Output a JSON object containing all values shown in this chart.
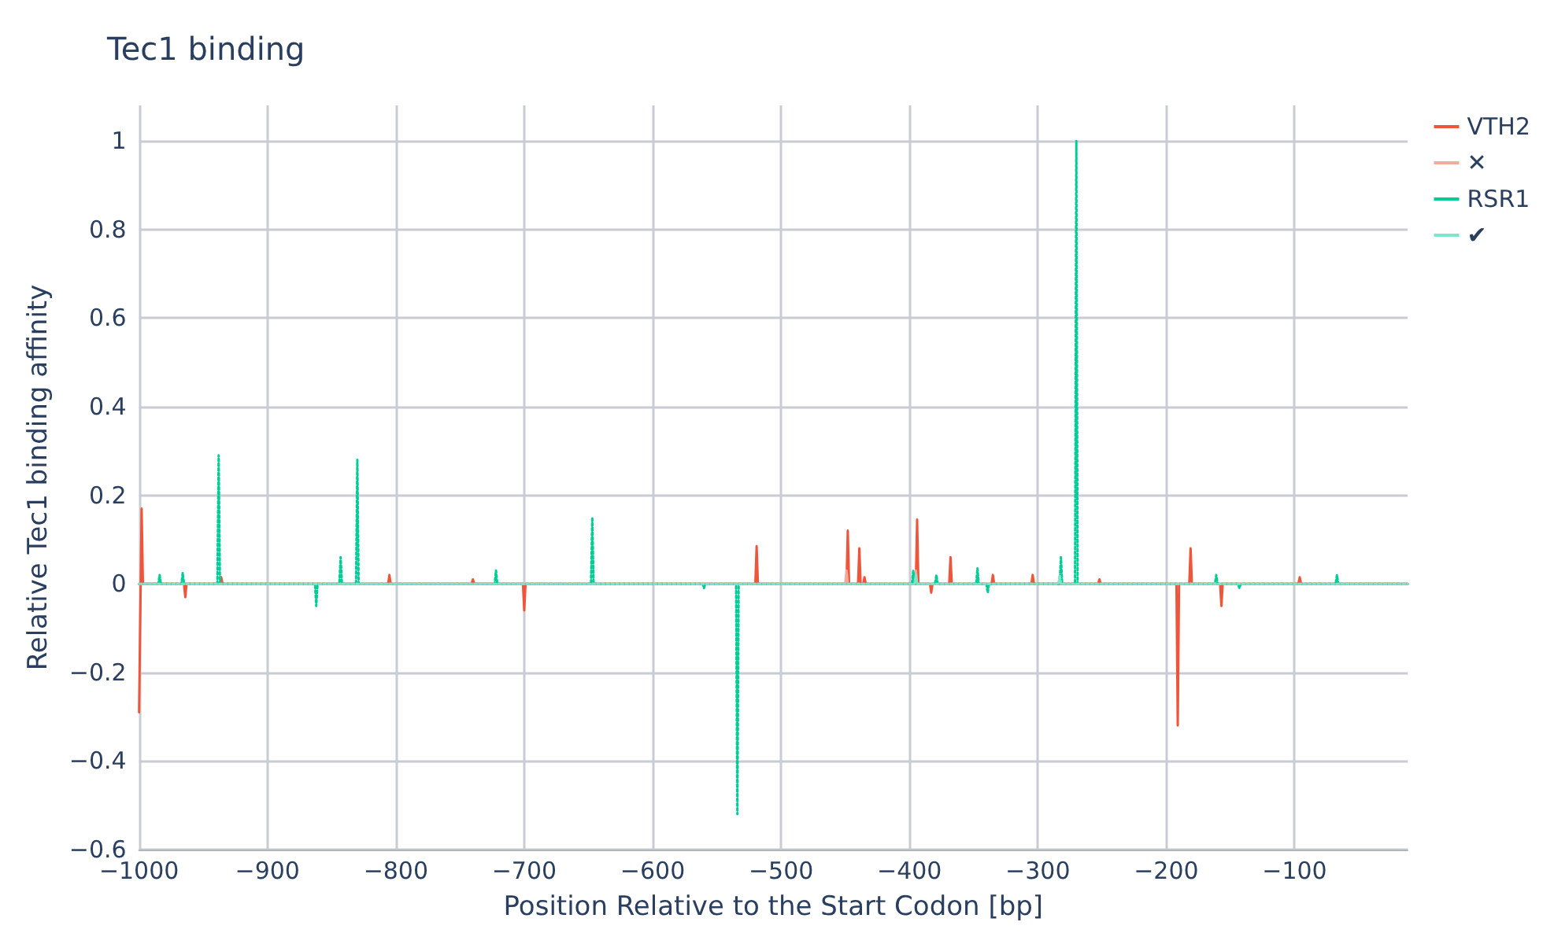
{
  "chart_data": {
    "type": "line",
    "title": "Tec1 binding",
    "xlabel": "Position Relative to the Start Codon [bp]",
    "ylabel": "Relative Tec1 binding affinity",
    "xlim": [
      -1000,
      -12
    ],
    "xticks": [
      -1000,
      -900,
      -800,
      -700,
      -600,
      -500,
      -400,
      -300,
      -200,
      -100
    ],
    "ylim": [
      -0.6,
      1.08
    ],
    "yticks": [
      -0.6,
      -0.4,
      -0.2,
      0,
      0.2,
      0.4,
      0.6,
      0.8,
      1
    ],
    "grid": true,
    "legend": "top right",
    "series": [
      {
        "name": "VTH2",
        "color": "#ef553b",
        "line_style": "solid",
        "x": [
          -1000,
          -998,
          -997,
          -965,
          -964,
          -963,
          -937,
          -936,
          -935,
          -806,
          -805,
          -804,
          -741,
          -740,
          -739,
          -701,
          -700,
          -699,
          -520,
          -519,
          -518,
          -449,
          -448,
          -447,
          -440,
          -439,
          -438,
          -436,
          -435,
          -434,
          -395,
          -394,
          -393,
          -384,
          -383,
          -382,
          -369,
          -368,
          -367,
          -336,
          -335,
          -334,
          -305,
          -304,
          -303,
          -253,
          -252,
          -251,
          -192,
          -191,
          -190,
          -182,
          -181,
          -180,
          -158,
          -157,
          -156,
          -97,
          -96,
          -95,
          -12
        ],
        "values": [
          -0.29,
          0.17,
          0,
          0,
          -0.03,
          0,
          0,
          0.015,
          0,
          0,
          0.02,
          0,
          0,
          0.01,
          0,
          0,
          -0.06,
          0,
          0,
          0.085,
          0,
          0,
          0.12,
          0,
          0,
          0.08,
          0,
          0,
          0.015,
          0,
          0,
          0.145,
          0,
          0,
          -0.02,
          0,
          0,
          0.06,
          0,
          0,
          0.02,
          0,
          0,
          0.02,
          0,
          0,
          0.01,
          0,
          0,
          -0.32,
          0,
          0,
          0.08,
          0,
          0,
          -0.05,
          0,
          0,
          0.015,
          0,
          0
        ]
      },
      {
        "name": "✕",
        "color": "#f4a99d",
        "line_style": "solid",
        "x": [
          -1000,
          -450,
          -449,
          -448,
          -396,
          -395,
          -394,
          -12
        ],
        "values": [
          0,
          0,
          0.03,
          0,
          0,
          0.03,
          0,
          0
        ]
      },
      {
        "name": "RSR1",
        "color": "#00cc96",
        "line_style": "dotted",
        "x": [
          -1000,
          -985,
          -984,
          -983,
          -967,
          -966,
          -965,
          -939,
          -938,
          -937,
          -863,
          -862,
          -861,
          -844,
          -843,
          -842,
          -831,
          -830,
          -829,
          -723,
          -722,
          -721,
          -648,
          -647,
          -646,
          -561,
          -560,
          -559,
          -535,
          -534,
          -533,
          -398,
          -397,
          -396,
          -380,
          -379,
          -378,
          -348,
          -347,
          -346,
          -340,
          -339,
          -338,
          -283,
          -282,
          -281,
          -271,
          -270,
          -269,
          -162,
          -161,
          -160,
          -144,
          -143,
          -142,
          -68,
          -67,
          -66,
          -12
        ],
        "values": [
          0,
          0,
          0.02,
          0,
          0,
          0.025,
          0,
          0,
          0.29,
          0,
          0,
          -0.05,
          0,
          0,
          0.06,
          0,
          0,
          0.28,
          0,
          0,
          0.03,
          0,
          0,
          0.15,
          0,
          0,
          -0.01,
          0,
          0,
          -0.52,
          0,
          0,
          0.03,
          0,
          0,
          0.02,
          0,
          0,
          0.035,
          0,
          0,
          -0.02,
          0,
          0,
          0.06,
          0,
          0,
          1,
          0,
          0,
          0.02,
          0,
          0,
          -0.01,
          0,
          0,
          0.02,
          0,
          0
        ]
      },
      {
        "name": "✔",
        "color": "#7fe5ca",
        "line_style": "dotted",
        "x": [
          -1000,
          -396,
          -395,
          -394,
          -284,
          -283,
          -282,
          -12
        ],
        "values": [
          0,
          0,
          0.02,
          0,
          0,
          0.02,
          0,
          0
        ]
      }
    ]
  }
}
